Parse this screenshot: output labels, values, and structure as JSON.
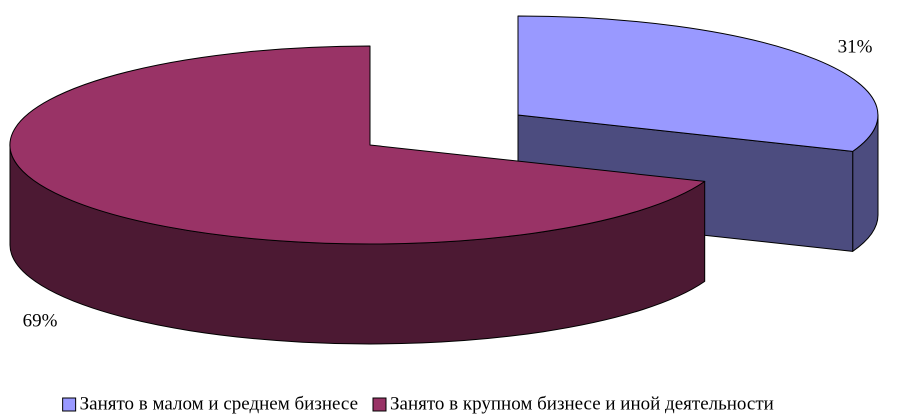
{
  "chart_data": {
    "type": "pie",
    "categories": [
      "Занято в малом и среднем бизнесе",
      "Занято в крупном бизнесе и иной деятельности"
    ],
    "values": [
      31,
      69
    ],
    "value_labels": [
      "31%",
      "69%"
    ],
    "colors": [
      "#9999ff",
      "#993366"
    ],
    "legend": "bottom"
  }
}
